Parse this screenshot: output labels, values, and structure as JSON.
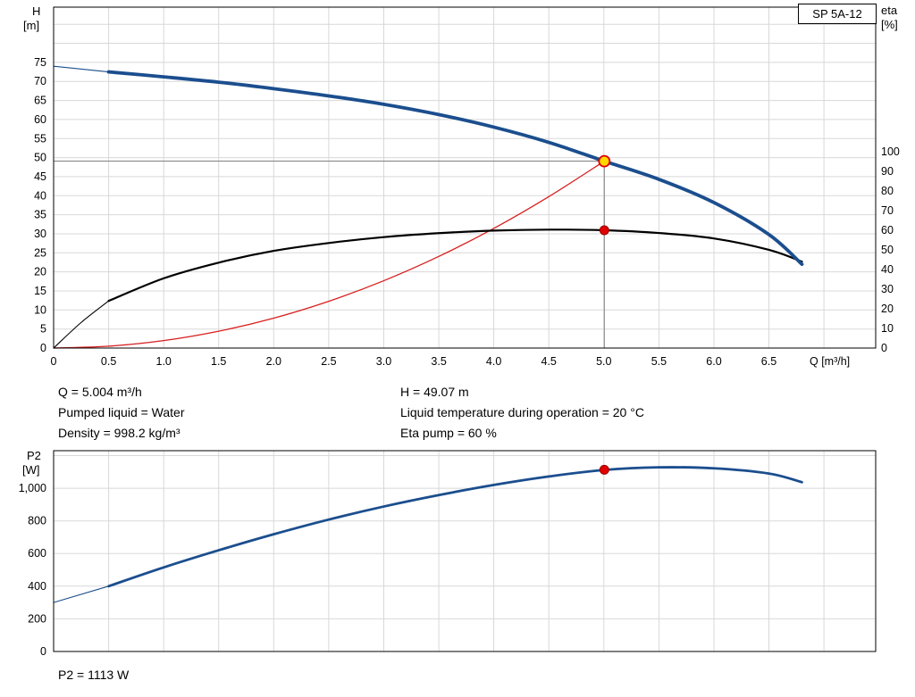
{
  "header": {
    "model": "SP 5A-12"
  },
  "axis_corner_labels": {
    "h": "H",
    "h_unit": "[m]",
    "eta": "eta",
    "eta_unit": "[%]",
    "p2": "P2",
    "p2_unit": "[W]"
  },
  "readouts": {
    "q": "Q = 5.004 m³/h",
    "pumped_liquid": "Pumped liquid = Water",
    "density": "Density = 998.2 kg/m³",
    "h": "H = 49.07 m",
    "liquid_temp": "Liquid temperature during operation = 20 °C",
    "eta_pump": "Eta pump = 60 %",
    "p2": "P2 = 1113 W"
  },
  "duty_point": {
    "q_m3h": 5.004,
    "h_m": 49.07,
    "eta_pct": 60,
    "p2_w": 1113
  },
  "colors": {
    "pump_curve": "#1b4e8e",
    "eta_curve": "#000000",
    "system_curve": "#d81e1e",
    "grid": "#d8d8d8",
    "axis": "#000000",
    "ref_line": "#808080",
    "marker_red": "#e00000",
    "marker_red_stroke": "#990000",
    "marker_yellow": "#ffd800"
  },
  "chart_data": [
    {
      "type": "line",
      "name": "head-eta-chart",
      "title": "Pump performance curve SP 5A-12: head and efficiency vs flow",
      "x_axis": {
        "label": "Q [m³/h]",
        "min": 0,
        "max": 7.47,
        "ticks": [
          0,
          0.5,
          1,
          1.5,
          2,
          2.5,
          3,
          3.5,
          4,
          4.5,
          5,
          5.5,
          6,
          6.5
        ],
        "tick_labels": [
          "0",
          "0.5",
          "1.0",
          "1.5",
          "2.0",
          "2.5",
          "3.0",
          "3.5",
          "4.0",
          "4.5",
          "5.0",
          "5.5",
          "6.0",
          "6.5"
        ],
        "grid": [
          0.5,
          1,
          1.5,
          2,
          2.5,
          3,
          3.5,
          4,
          4.5,
          5,
          5.5,
          6,
          6.5,
          7
        ]
      },
      "y_left": {
        "label": "H [m]",
        "min": 0,
        "max": 89.5,
        "ticks": [
          0,
          5,
          10,
          15,
          20,
          25,
          30,
          35,
          40,
          45,
          50,
          55,
          60,
          65,
          70,
          75
        ],
        "tick_labels": [
          "0",
          "5",
          "10",
          "15",
          "20",
          "25",
          "30",
          "35",
          "40",
          "45",
          "50",
          "55",
          "60",
          "65",
          "70",
          "75"
        ],
        "grid": [
          5,
          10,
          15,
          20,
          25,
          30,
          35,
          40,
          45,
          50,
          55,
          60,
          65,
          70,
          75,
          80,
          85
        ]
      },
      "y_right": {
        "label": "eta [%]",
        "min": 0,
        "max": 173.6,
        "ticks": [
          0,
          10,
          20,
          30,
          40,
          50,
          60,
          70,
          80,
          90,
          100
        ],
        "tick_labels": [
          "0",
          "10",
          "20",
          "30",
          "40",
          "50",
          "60",
          "70",
          "80",
          "90",
          "100"
        ]
      },
      "series": [
        {
          "name": "system-curve",
          "axis": "left",
          "color": "#d81e1e",
          "width": 1.3,
          "points": [
            [
              0,
              0
            ],
            [
              0.5,
              0.49
            ],
            [
              1,
              1.96
            ],
            [
              1.5,
              4.42
            ],
            [
              2,
              7.85
            ],
            [
              2.5,
              12.27
            ],
            [
              3,
              17.67
            ],
            [
              3.5,
              24.05
            ],
            [
              4,
              31.41
            ],
            [
              4.5,
              39.76
            ],
            [
              5.004,
              49.07
            ]
          ]
        },
        {
          "name": "efficiency-curve",
          "axis": "right",
          "color": "#000000",
          "width": 2.2,
          "lead_thin_until": 0.5,
          "points": [
            [
              0,
              0
            ],
            [
              0.25,
              13
            ],
            [
              0.5,
              24
            ],
            [
              1,
              35.5
            ],
            [
              1.5,
              43.5
            ],
            [
              2,
              49.5
            ],
            [
              2.5,
              53.5
            ],
            [
              3,
              56.5
            ],
            [
              3.5,
              58.5
            ],
            [
              4,
              59.8
            ],
            [
              4.5,
              60.3
            ],
            [
              5,
              60
            ],
            [
              5.5,
              58.6
            ],
            [
              6,
              55.8
            ],
            [
              6.5,
              50
            ],
            [
              6.8,
              44
            ]
          ]
        },
        {
          "name": "pump-curve",
          "axis": "left",
          "color": "#1b4e8e",
          "width": 3.8,
          "lead_thin_until": 0.5,
          "points": [
            [
              0,
              74
            ],
            [
              0.5,
              72.5
            ],
            [
              1,
              71.2
            ],
            [
              1.5,
              69.8
            ],
            [
              2,
              68.1
            ],
            [
              2.5,
              66.2
            ],
            [
              3,
              64
            ],
            [
              3.5,
              61.3
            ],
            [
              4,
              58
            ],
            [
              4.5,
              54
            ],
            [
              5.004,
              49.07
            ],
            [
              5.5,
              44.3
            ],
            [
              6,
              38.2
            ],
            [
              6.5,
              29.8
            ],
            [
              6.8,
              22
            ]
          ]
        }
      ],
      "ref_lines": {
        "q": 5.004,
        "h": 49.07
      },
      "markers": [
        {
          "name": "duty-point-marker",
          "axis": "left",
          "x": 5.004,
          "y": 49.07,
          "r": 6,
          "fill": "#ffd800",
          "stroke": "#e00000",
          "stroke_width": 1.8
        },
        {
          "name": "eta-point-marker",
          "axis": "right",
          "x": 5.004,
          "y": 60,
          "r": 5,
          "fill": "#e00000",
          "stroke": "#990000",
          "stroke_width": 1
        }
      ]
    },
    {
      "type": "line",
      "name": "power-chart",
      "title": "Shaft power P2 vs flow",
      "x_axis": {
        "label": "",
        "min": 0,
        "max": 7.47,
        "ticks": [],
        "tick_labels": [],
        "grid": [
          0.5,
          1,
          1.5,
          2,
          2.5,
          3,
          3.5,
          4,
          4.5,
          5,
          5.5,
          6,
          6.5,
          7
        ]
      },
      "y_left": {
        "label": "P2 [W]",
        "min": 0,
        "max": 1230,
        "ticks": [
          0,
          200,
          400,
          600,
          800,
          1000
        ],
        "tick_labels": [
          "0",
          "200",
          "400",
          "600",
          "800",
          "1,000"
        ],
        "grid": [
          200,
          400,
          600,
          800,
          1000,
          1200
        ]
      },
      "series": [
        {
          "name": "p2-curve",
          "axis": "left",
          "color": "#1b4e8e",
          "width": 2.8,
          "lead_thin_until": 0.5,
          "points": [
            [
              0,
              300
            ],
            [
              0.5,
              400
            ],
            [
              1,
              515
            ],
            [
              1.5,
              620
            ],
            [
              2,
              718
            ],
            [
              2.5,
              808
            ],
            [
              3,
              888
            ],
            [
              3.5,
              958
            ],
            [
              4,
              1020
            ],
            [
              4.5,
              1072
            ],
            [
              5,
              1112
            ],
            [
              5.5,
              1128
            ],
            [
              6,
              1122
            ],
            [
              6.5,
              1090
            ],
            [
              6.8,
              1037
            ]
          ]
        }
      ],
      "markers": [
        {
          "name": "p2-point-marker",
          "axis": "left",
          "x": 5.004,
          "y": 1113,
          "r": 5,
          "fill": "#e00000",
          "stroke": "#990000",
          "stroke_width": 1
        }
      ]
    }
  ]
}
